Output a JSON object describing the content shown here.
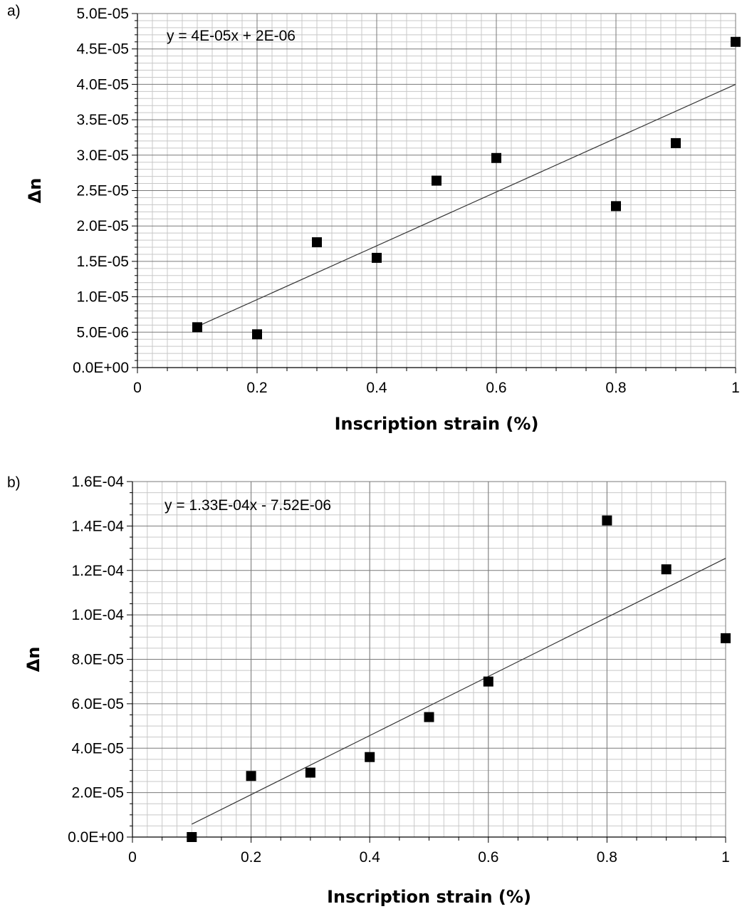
{
  "chart_data": [
    {
      "type": "scatter",
      "panel_label": "a)",
      "xlabel": "Inscription strain (%)",
      "ylabel": "Δn",
      "xlim": [
        0,
        1
      ],
      "ylim": [
        0,
        5e-05
      ],
      "x_ticks": [
        0,
        0.2,
        0.4,
        0.6,
        0.8,
        1
      ],
      "x_tick_labels": [
        "0",
        "0.2",
        "0.4",
        "0.6",
        "0.8",
        "1"
      ],
      "y_ticks": [
        0,
        5e-06,
        1e-05,
        1.5e-05,
        2e-05,
        2.5e-05,
        3e-05,
        3.5e-05,
        4e-05,
        4.5e-05,
        5e-05
      ],
      "y_tick_labels": [
        "0.0E+00",
        "5.0E-06",
        "1.0E-05",
        "1.5E-05",
        "2.0E-05",
        "2.5E-05",
        "3.0E-05",
        "3.5E-05",
        "4.0E-05",
        "4.5E-05",
        "5.0E-05"
      ],
      "grid": true,
      "marker": "square",
      "marker_color": "#000000",
      "points": [
        {
          "x": 0.1,
          "y": 5.7e-06
        },
        {
          "x": 0.2,
          "y": 4.7e-06
        },
        {
          "x": 0.3,
          "y": 1.77e-05
        },
        {
          "x": 0.4,
          "y": 1.55e-05
        },
        {
          "x": 0.5,
          "y": 2.64e-05
        },
        {
          "x": 0.6,
          "y": 2.96e-05
        },
        {
          "x": 0.8,
          "y": 2.28e-05
        },
        {
          "x": 0.9,
          "y": 3.17e-05
        },
        {
          "x": 1.0,
          "y": 4.6e-05
        }
      ],
      "trendline": {
        "equation": "y = 4E-05x + 2E-06",
        "slope": 3.8e-05,
        "intercept": 2e-06,
        "x_range": [
          0.1,
          1.0
        ]
      }
    },
    {
      "type": "scatter",
      "panel_label": "b)",
      "xlabel": "Inscription strain (%)",
      "ylabel": "Δn",
      "xlim": [
        0,
        1
      ],
      "ylim": [
        0,
        0.00016
      ],
      "x_ticks": [
        0,
        0.2,
        0.4,
        0.6,
        0.8,
        1
      ],
      "x_tick_labels": [
        "0",
        "0.2",
        "0.4",
        "0.6",
        "0.8",
        "1"
      ],
      "y_ticks": [
        0,
        2e-05,
        4e-05,
        6e-05,
        8e-05,
        0.0001,
        0.00012,
        0.00014,
        0.00016
      ],
      "y_tick_labels": [
        "0.0E+00",
        "2.0E-05",
        "4.0E-05",
        "6.0E-05",
        "8.0E-05",
        "1.0E-04",
        "1.2E-04",
        "1.4E-04",
        "1.6E-04"
      ],
      "grid": true,
      "marker": "square",
      "marker_color": "#000000",
      "points": [
        {
          "x": 0.1,
          "y": 0.0
        },
        {
          "x": 0.2,
          "y": 2.75e-05
        },
        {
          "x": 0.3,
          "y": 2.9e-05
        },
        {
          "x": 0.4,
          "y": 3.6e-05
        },
        {
          "x": 0.5,
          "y": 5.4e-05
        },
        {
          "x": 0.6,
          "y": 7e-05
        },
        {
          "x": 0.8,
          "y": 0.0001425
        },
        {
          "x": 0.9,
          "y": 0.0001205
        },
        {
          "x": 1.0,
          "y": 8.95e-05
        }
      ],
      "trendline": {
        "equation": "y = 1.33E-04x - 7.52E-06",
        "slope": 0.000133,
        "intercept": -7.52e-06,
        "x_range": [
          0.1,
          1.0
        ]
      }
    }
  ]
}
